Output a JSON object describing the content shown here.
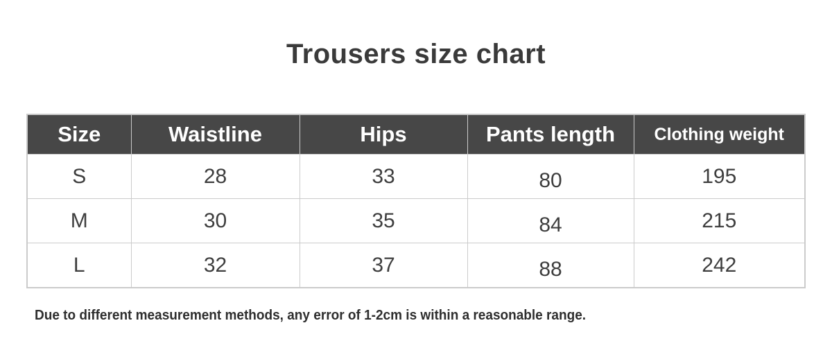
{
  "chart_data": {
    "type": "table",
    "title": "Trousers size chart",
    "columns": [
      "Size",
      "Waistline",
      "Hips",
      "Pants length",
      "Clothing weight"
    ],
    "rows": [
      [
        "S",
        28,
        33,
        80,
        195
      ],
      [
        "M",
        30,
        35,
        84,
        215
      ],
      [
        "L",
        32,
        37,
        88,
        242
      ]
    ],
    "footnote": "Due to different measurement methods, any error of 1-2cm is within a reasonable range.",
    "layout": {
      "header_style": "dark-bar",
      "grid": "light-gray-lines",
      "title_position": "top-center",
      "footnote_position": "bottom-left"
    }
  },
  "colors": {
    "header_bg": "#474747",
    "header_text": "#ffffff",
    "body_text": "#3e3e3e",
    "grid_border": "#cbcbcb",
    "title_text": "#3a3a3a",
    "background": "#ffffff"
  }
}
